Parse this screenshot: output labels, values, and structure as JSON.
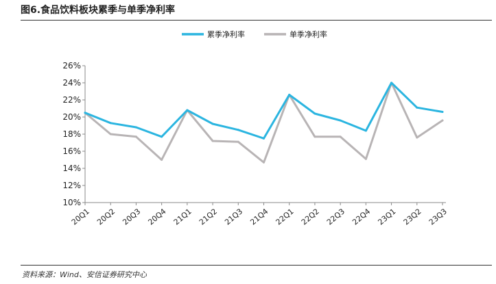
{
  "title": "图6.食品饮料板块累季与单季净利率",
  "source": "资料来源：Wind、安信证券研究中心",
  "chart_data": {
    "type": "line",
    "categories": [
      "20Q1",
      "20Q2",
      "20Q3",
      "20Q4",
      "21Q1",
      "21Q2",
      "21Q3",
      "21Q4",
      "22Q1",
      "22Q2",
      "22Q3",
      "22Q4",
      "23Q1",
      "23Q2",
      "23Q3"
    ],
    "series": [
      {
        "name": "累季净利率",
        "color": "#2bb5e0",
        "values": [
          20.5,
          19.3,
          18.8,
          17.7,
          20.8,
          19.2,
          18.5,
          17.5,
          22.6,
          20.4,
          19.6,
          18.4,
          24.0,
          21.1,
          20.6
        ]
      },
      {
        "name": "单季净利率",
        "color": "#b8b4b5",
        "values": [
          20.5,
          18.0,
          17.7,
          15.0,
          20.8,
          17.2,
          17.1,
          14.7,
          22.6,
          17.7,
          17.7,
          15.1,
          24.0,
          17.6,
          19.6
        ]
      }
    ],
    "yticks": [
      "10%",
      "12%",
      "14%",
      "16%",
      "18%",
      "20%",
      "22%",
      "24%",
      "26%"
    ],
    "ylim": [
      10,
      26
    ],
    "legend_position": "top"
  }
}
